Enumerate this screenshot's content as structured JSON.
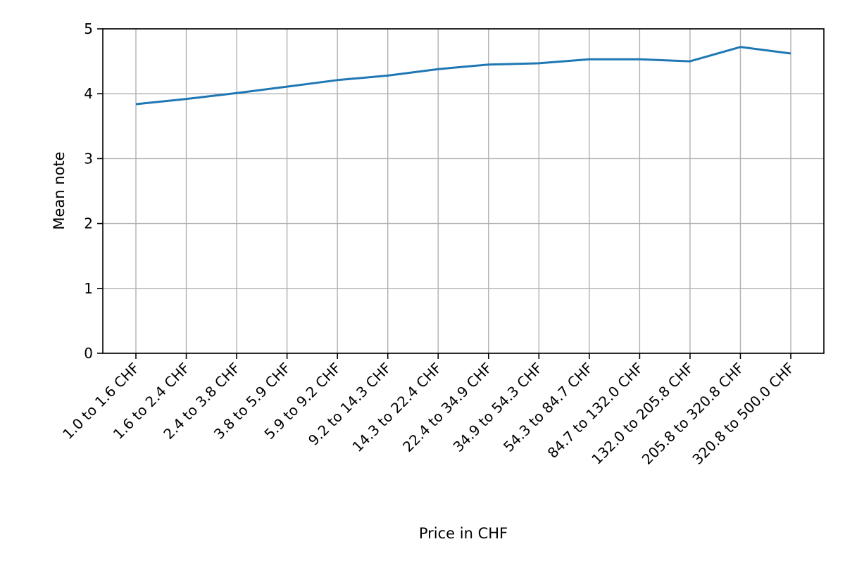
{
  "chart_data": {
    "type": "line",
    "title": "",
    "xlabel": "Price in CHF",
    "ylabel": "Mean note",
    "categories": [
      "1.0 to 1.6 CHF",
      "1.6 to 2.4 CHF",
      "2.4 to 3.8 CHF",
      "3.8 to 5.9 CHF",
      "5.9 to 9.2 CHF",
      "9.2 to 14.3 CHF",
      "14.3 to 22.4 CHF",
      "22.4 to 34.9 CHF",
      "34.9 to 54.3 CHF",
      "54.3 to 84.7 CHF",
      "84.7 to 132.0 CHF",
      "132.0 to 205.8 CHF",
      "205.8 to 320.8 CHF",
      "320.8 to 500.0 CHF"
    ],
    "series": [
      {
        "values": [
          3.84,
          3.92,
          4.01,
          4.11,
          4.21,
          4.28,
          4.38,
          4.45,
          4.47,
          4.53,
          4.53,
          4.5,
          4.72,
          4.62
        ],
        "color": "#1f77b4"
      }
    ],
    "ylim": [
      0,
      5
    ],
    "yticks": [
      "0",
      "1",
      "2",
      "3",
      "4",
      "5"
    ],
    "grid": true
  }
}
